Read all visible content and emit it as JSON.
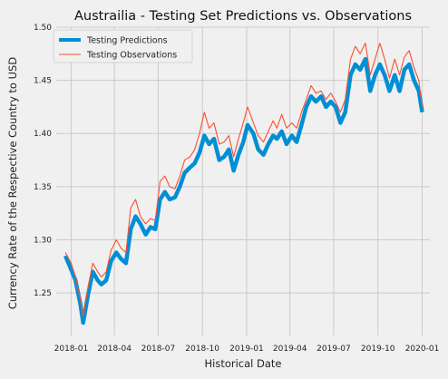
{
  "chart_data": {
    "type": "line",
    "title": "Austrailia - Testing Set Predictions vs. Observations",
    "xlabel": "Historical Date",
    "ylabel": "Currency Rate of the Respective Country to USD",
    "x_ticks": [
      "2018-01",
      "2018-04",
      "2018-07",
      "2018-10",
      "2019-01",
      "2019-04",
      "2019-07",
      "2019-10",
      "2020-01"
    ],
    "y_ticks": [
      "1.25",
      "1.30",
      "1.35",
      "1.40",
      "1.45",
      "1.50"
    ],
    "ylim": [
      1.21,
      1.5
    ],
    "xlim": [
      "2017-12-01",
      "2020-01-17"
    ],
    "grid": true,
    "legend_position": "top-left",
    "x": [
      "2017-12-20",
      "2018-01-01",
      "2018-01-10",
      "2018-01-20",
      "2018-01-26",
      "2018-02-05",
      "2018-02-15",
      "2018-02-25",
      "2018-03-05",
      "2018-03-15",
      "2018-03-25",
      "2018-04-05",
      "2018-04-15",
      "2018-04-25",
      "2018-05-05",
      "2018-05-15",
      "2018-05-25",
      "2018-06-05",
      "2018-06-15",
      "2018-06-25",
      "2018-07-05",
      "2018-07-15",
      "2018-07-25",
      "2018-08-05",
      "2018-08-15",
      "2018-08-25",
      "2018-09-05",
      "2018-09-15",
      "2018-09-25",
      "2018-10-05",
      "2018-10-15",
      "2018-10-25",
      "2018-11-05",
      "2018-11-15",
      "2018-11-25",
      "2018-12-05",
      "2018-12-15",
      "2018-12-25",
      "2019-01-03",
      "2019-01-15",
      "2019-01-25",
      "2019-02-05",
      "2019-02-15",
      "2019-02-25",
      "2019-03-05",
      "2019-03-15",
      "2019-03-25",
      "2019-04-05",
      "2019-04-15",
      "2019-04-25",
      "2019-05-05",
      "2019-05-15",
      "2019-05-25",
      "2019-06-05",
      "2019-06-15",
      "2019-06-25",
      "2019-07-05",
      "2019-07-15",
      "2019-07-25",
      "2019-08-05",
      "2019-08-15",
      "2019-08-25",
      "2019-09-05",
      "2019-09-15",
      "2019-09-25",
      "2019-10-05",
      "2019-10-15",
      "2019-10-25",
      "2019-11-05",
      "2019-11-15",
      "2019-11-25",
      "2019-12-05",
      "2019-12-15",
      "2019-12-25",
      "2020-01-01"
    ],
    "series": [
      {
        "name": "Testing Predictions",
        "color": "#008fd5",
        "values": [
          1.285,
          1.272,
          1.262,
          1.24,
          1.222,
          1.248,
          1.27,
          1.262,
          1.258,
          1.262,
          1.28,
          1.288,
          1.282,
          1.278,
          1.31,
          1.322,
          1.315,
          1.305,
          1.312,
          1.31,
          1.338,
          1.345,
          1.338,
          1.34,
          1.35,
          1.363,
          1.368,
          1.372,
          1.382,
          1.398,
          1.39,
          1.395,
          1.375,
          1.378,
          1.385,
          1.365,
          1.38,
          1.392,
          1.408,
          1.4,
          1.385,
          1.38,
          1.39,
          1.398,
          1.395,
          1.402,
          1.39,
          1.398,
          1.392,
          1.408,
          1.425,
          1.435,
          1.43,
          1.435,
          1.425,
          1.43,
          1.425,
          1.41,
          1.42,
          1.455,
          1.465,
          1.46,
          1.47,
          1.44,
          1.455,
          1.465,
          1.455,
          1.44,
          1.455,
          1.44,
          1.46,
          1.465,
          1.45,
          1.44,
          1.42
        ]
      },
      {
        "name": "Testing Observations",
        "color": "#fc4f30",
        "values": [
          1.288,
          1.278,
          1.265,
          1.245,
          1.228,
          1.255,
          1.278,
          1.27,
          1.265,
          1.27,
          1.29,
          1.3,
          1.292,
          1.288,
          1.33,
          1.338,
          1.322,
          1.315,
          1.32,
          1.318,
          1.355,
          1.36,
          1.35,
          1.348,
          1.36,
          1.375,
          1.378,
          1.385,
          1.4,
          1.42,
          1.405,
          1.41,
          1.39,
          1.392,
          1.398,
          1.378,
          1.395,
          1.41,
          1.425,
          1.41,
          1.398,
          1.392,
          1.402,
          1.412,
          1.405,
          1.418,
          1.405,
          1.41,
          1.405,
          1.42,
          1.432,
          1.445,
          1.438,
          1.44,
          1.432,
          1.438,
          1.43,
          1.42,
          1.432,
          1.47,
          1.482,
          1.475,
          1.485,
          1.455,
          1.47,
          1.485,
          1.47,
          1.452,
          1.47,
          1.455,
          1.472,
          1.478,
          1.462,
          1.45,
          1.425
        ]
      }
    ]
  }
}
